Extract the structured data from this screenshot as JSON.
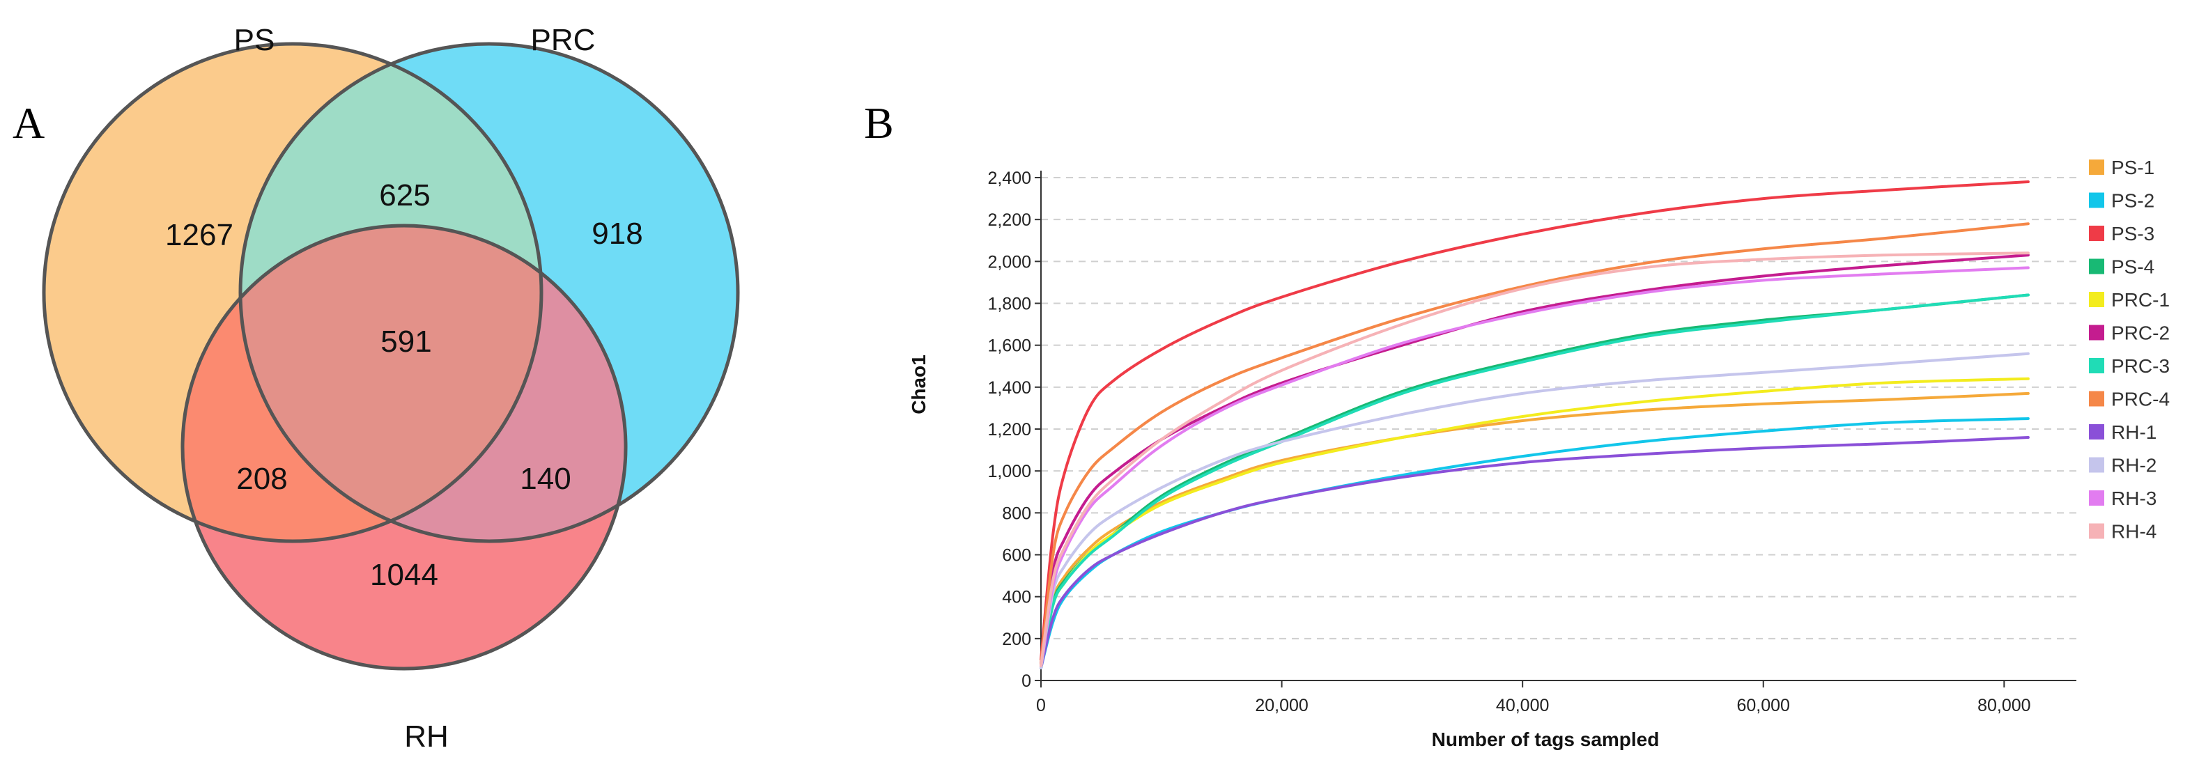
{
  "panels": {
    "a_label": "A",
    "b_label": "B"
  },
  "venn": {
    "sets": [
      {
        "name": "PS",
        "color": "#fbcb8c"
      },
      {
        "name": "PRC",
        "color": "#6fdcf6"
      },
      {
        "name": "RH",
        "color": "#f8848a"
      }
    ],
    "regions": {
      "ps_only": "1267",
      "prc_only": "918",
      "rh_only": "1044",
      "ps_prc": "625",
      "ps_rh": "208",
      "prc_rh": "140",
      "all": "591"
    }
  },
  "chart_data": {
    "type": "line",
    "title": "",
    "xlabel": "Number of tags sampled",
    "ylabel": "Chao1",
    "xlim": [
      0,
      86000
    ],
    "ylim": [
      0,
      2400
    ],
    "x_ticks": [
      0,
      20000,
      40000,
      60000,
      80000
    ],
    "x_tick_labels": [
      "0",
      "20,000",
      "40,000",
      "60,000",
      "80,000"
    ],
    "y_ticks": [
      0,
      200,
      400,
      600,
      800,
      1000,
      1200,
      1400,
      1600,
      1800,
      2000,
      2200,
      2400
    ],
    "y_tick_labels": [
      "0",
      "200",
      "400",
      "600",
      "800",
      "1,000",
      "1,200",
      "1,400",
      "1,600",
      "1,800",
      "2,000",
      "2,200",
      "2,400"
    ],
    "grid": "horizontal dashed",
    "legend_position": "right",
    "x": [
      0,
      1000,
      2000,
      4000,
      6000,
      10000,
      15000,
      20000,
      30000,
      40000,
      50000,
      60000,
      70000,
      82000
    ],
    "series": [
      {
        "name": "PS-1",
        "color": "#f5a93a",
        "values": [
          60,
          380,
          500,
          630,
          720,
          850,
          960,
          1050,
          1160,
          1240,
          1290,
          1320,
          1340,
          1370
        ]
      },
      {
        "name": "PS-2",
        "color": "#12c6ea",
        "values": [
          60,
          280,
          400,
          520,
          600,
          710,
          800,
          870,
          980,
          1070,
          1140,
          1190,
          1230,
          1250
        ]
      },
      {
        "name": "PS-3",
        "color": "#ef3b47",
        "values": [
          100,
          700,
          1000,
          1300,
          1430,
          1580,
          1720,
          1830,
          2000,
          2130,
          2230,
          2300,
          2340,
          2380
        ]
      },
      {
        "name": "PS-4",
        "color": "#18b974",
        "values": [
          60,
          370,
          480,
          610,
          700,
          880,
          1030,
          1150,
          1380,
          1530,
          1650,
          1720,
          1770,
          1840
        ]
      },
      {
        "name": "PRC-1",
        "color": "#f3ec1e",
        "values": [
          60,
          360,
          470,
          610,
          700,
          840,
          950,
          1040,
          1160,
          1260,
          1330,
          1380,
          1420,
          1440
        ]
      },
      {
        "name": "PRC-2",
        "color": "#c41c8f",
        "values": [
          80,
          520,
          680,
          880,
          990,
          1150,
          1300,
          1420,
          1600,
          1760,
          1860,
          1930,
          1980,
          2030
        ]
      },
      {
        "name": "PRC-3",
        "color": "#20dcb6",
        "values": [
          60,
          360,
          470,
          600,
          690,
          870,
          1020,
          1140,
          1370,
          1520,
          1640,
          1710,
          1770,
          1840
        ]
      },
      {
        "name": "PRC-4",
        "color": "#f58748",
        "values": [
          80,
          600,
          800,
          1000,
          1110,
          1280,
          1430,
          1540,
          1730,
          1880,
          1990,
          2060,
          2110,
          2180
        ]
      },
      {
        "name": "RH-1",
        "color": "#8a50d8",
        "values": [
          60,
          300,
          410,
          530,
          600,
          700,
          800,
          870,
          970,
          1040,
          1080,
          1110,
          1130,
          1160
        ]
      },
      {
        "name": "RH-2",
        "color": "#c5c5ec",
        "values": [
          60,
          420,
          550,
          700,
          790,
          920,
          1050,
          1140,
          1270,
          1370,
          1430,
          1470,
          1510,
          1560
        ]
      },
      {
        "name": "RH-3",
        "color": "#e27cf0",
        "values": [
          70,
          450,
          620,
          820,
          930,
          1120,
          1290,
          1410,
          1610,
          1750,
          1850,
          1910,
          1940,
          1970
        ]
      },
      {
        "name": "RH-4",
        "color": "#f6b2b6",
        "values": [
          70,
          480,
          640,
          840,
          960,
          1150,
          1330,
          1480,
          1700,
          1870,
          1970,
          2010,
          2030,
          2040
        ]
      }
    ]
  }
}
